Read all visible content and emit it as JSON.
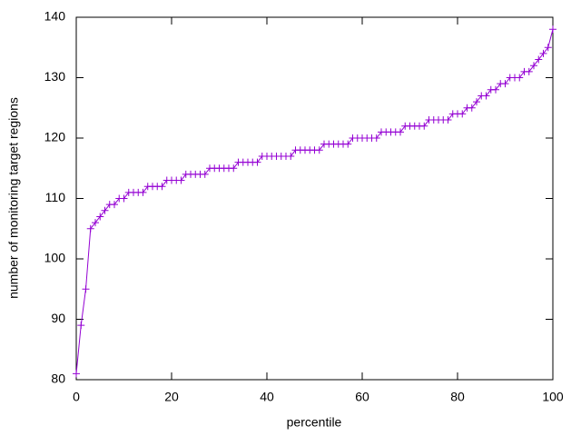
{
  "chart_data": {
    "type": "line",
    "xlabel": "percentile",
    "ylabel": "number of monitoring target regions",
    "x": [
      0,
      1,
      2,
      3,
      4,
      5,
      6,
      7,
      8,
      9,
      10,
      11,
      12,
      13,
      14,
      15,
      16,
      17,
      18,
      19,
      20,
      21,
      22,
      23,
      24,
      25,
      26,
      27,
      28,
      29,
      30,
      31,
      32,
      33,
      34,
      35,
      36,
      37,
      38,
      39,
      40,
      41,
      42,
      43,
      44,
      45,
      46,
      47,
      48,
      49,
      50,
      51,
      52,
      53,
      54,
      55,
      56,
      57,
      58,
      59,
      60,
      61,
      62,
      63,
      64,
      65,
      66,
      67,
      68,
      69,
      70,
      71,
      72,
      73,
      74,
      75,
      76,
      77,
      78,
      79,
      80,
      81,
      82,
      83,
      84,
      85,
      86,
      87,
      88,
      89,
      90,
      91,
      92,
      93,
      94,
      95,
      96,
      97,
      98,
      99,
      100
    ],
    "values": [
      81,
      89,
      95,
      105,
      106,
      107,
      108,
      109,
      109,
      110,
      110,
      111,
      111,
      111,
      111,
      112,
      112,
      112,
      112,
      113,
      113,
      113,
      113,
      114,
      114,
      114,
      114,
      114,
      115,
      115,
      115,
      115,
      115,
      115,
      116,
      116,
      116,
      116,
      116,
      117,
      117,
      117,
      117,
      117,
      117,
      117,
      118,
      118,
      118,
      118,
      118,
      118,
      119,
      119,
      119,
      119,
      119,
      119,
      120,
      120,
      120,
      120,
      120,
      120,
      121,
      121,
      121,
      121,
      121,
      122,
      122,
      122,
      122,
      122,
      123,
      123,
      123,
      123,
      123,
      124,
      124,
      124,
      125,
      125,
      126,
      127,
      127,
      128,
      128,
      129,
      129,
      130,
      130,
      130,
      131,
      131,
      132,
      133,
      134,
      135,
      138
    ],
    "color": "#9400d3",
    "xlim": [
      0,
      100
    ],
    "xticks": [
      0,
      20,
      40,
      60,
      80,
      100
    ],
    "ylim": [
      80,
      140
    ],
    "yticks": [
      80,
      90,
      100,
      110,
      120,
      130,
      140
    ],
    "marker": "+"
  }
}
